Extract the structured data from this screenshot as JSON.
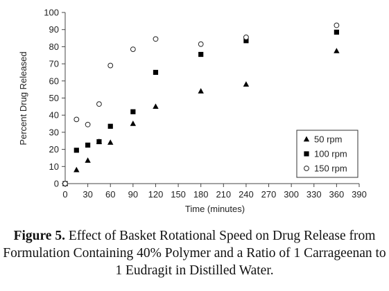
{
  "chart_data": {
    "type": "scatter",
    "xlabel": "Time (minutes)",
    "ylabel": "Percent Drug Released",
    "xlim": [
      0,
      390
    ],
    "ylim": [
      0,
      100
    ],
    "xticks": [
      0,
      30,
      60,
      90,
      120,
      150,
      180,
      210,
      240,
      270,
      300,
      330,
      360,
      390
    ],
    "xtick_labels": [
      "0",
      "30",
      "60",
      "90",
      "120",
      "150",
      "180",
      "210",
      "240",
      "270",
      "300",
      "330",
      "360",
      "390"
    ],
    "yticks": [
      0,
      10,
      20,
      30,
      40,
      50,
      60,
      70,
      80,
      90,
      100
    ],
    "grid": false,
    "legend_position": "bottom-right",
    "series": [
      {
        "name": "50 rpm",
        "marker": "triangle",
        "color": "#000000",
        "x": [
          0,
          15,
          30,
          45,
          60,
          90,
          120,
          180,
          240,
          360
        ],
        "y": [
          0,
          8,
          13.5,
          24.5,
          24,
          35,
          45,
          54,
          58,
          77.5
        ]
      },
      {
        "name": "100 rpm",
        "marker": "square",
        "color": "#000000",
        "x": [
          0,
          15,
          30,
          45,
          60,
          90,
          120,
          180,
          240,
          360
        ],
        "y": [
          0,
          19.5,
          22.5,
          24.5,
          33.5,
          42,
          65,
          75.5,
          83.5,
          88.5
        ]
      },
      {
        "name": "150 rpm",
        "marker": "open-circle",
        "color": "#000000",
        "x": [
          0,
          15,
          30,
          45,
          60,
          90,
          120,
          180,
          240,
          360
        ],
        "y": [
          0,
          37.5,
          34.5,
          46.5,
          69,
          78.5,
          84.5,
          81.5,
          85.5,
          92.5
        ]
      }
    ]
  },
  "caption": {
    "label": "Figure 5.",
    "text": " Effect of Basket Rotational Speed on Drug Release from Formulation Containing 40% Polymer and a Ratio of 1 Carrageenan to 1 Eudragit in Distilled Water."
  }
}
